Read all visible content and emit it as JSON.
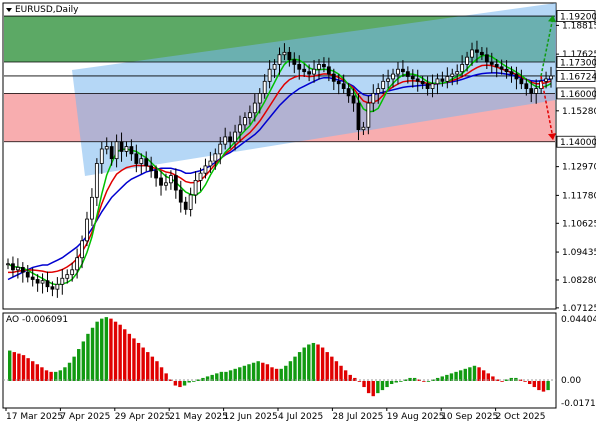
{
  "window": {
    "symbol_label": "EURUSD,Daily"
  },
  "oscillator": {
    "label": "AO -0.006091",
    "scale": [
      "0.044046",
      "0.00",
      "-0.017114"
    ]
  },
  "colors": {
    "resistance_zone": "#3f9a4a",
    "support_zone": "#f4777a",
    "channel": "#78b6ee",
    "ma_fast": "#00c000",
    "ma_mid": "#e00000",
    "ma_slow": "#0000d0",
    "ao_up": "#119a11",
    "ao_down": "#e00000",
    "arrow_up": "#119a11",
    "arrow_down": "#e00000"
  },
  "chart_data": [
    {
      "type": "candlestick",
      "title": "EURUSD,Daily",
      "ylim": [
        1.0712,
        1.197
      ],
      "y_ticks": [
        "1.18815",
        "1.17625",
        "1.15280",
        "1.12970",
        "1.11780",
        "1.10625",
        "1.09435",
        "1.08280",
        "1.07125"
      ],
      "price_labels": [
        {
          "text": "1.19200",
          "value": 1.192,
          "style": "boxed"
        },
        {
          "text": "1.17300",
          "value": 1.173,
          "style": "boxed"
        },
        {
          "text": "1.16724",
          "value": 1.16724,
          "style": "boxed"
        },
        {
          "text": "1.16000",
          "value": 1.16,
          "style": "boxed"
        },
        {
          "text": "1.14000",
          "value": 1.14,
          "style": "boxed"
        }
      ],
      "zones": [
        {
          "name": "resistance",
          "from": 1.173,
          "to": 1.192
        },
        {
          "name": "support",
          "from": 1.14,
          "to": 1.16
        }
      ],
      "x_labels": [
        "17 Mar 2025",
        "7 Apr 2025",
        "29 Apr 2025",
        "21 May 2025",
        "12 Jun 2025",
        "4 Jul 2025",
        "28 Jul 2025",
        "19 Aug 2025",
        "10 Sep 2025",
        "2 Oct 2025"
      ],
      "series": [
        {
          "values": [
            1.0895,
            1.087,
            1.088,
            1.086,
            1.084,
            1.083,
            1.0815,
            1.0825,
            1.08,
            1.079,
            1.081,
            1.0835,
            1.085,
            1.087,
            1.092,
            1.099,
            1.108,
            1.117,
            1.131,
            1.137,
            1.138,
            1.133,
            1.14,
            1.136,
            1.138,
            1.135,
            1.131,
            1.133,
            1.13,
            1.128,
            1.125,
            1.122,
            1.123,
            1.126,
            1.12,
            1.115,
            1.112,
            1.118,
            1.124,
            1.127,
            1.13,
            1.132,
            1.135,
            1.139,
            1.142,
            1.14,
            1.144,
            1.147,
            1.15,
            1.152,
            1.156,
            1.16,
            1.165,
            1.17,
            1.172,
            1.176,
            1.177,
            1.174,
            1.172,
            1.17,
            1.169,
            1.168,
            1.17,
            1.172,
            1.171,
            1.168,
            1.165,
            1.164,
            1.162,
            1.159,
            1.156,
            1.145,
            1.146,
            1.156,
            1.16,
            1.162,
            1.165,
            1.166,
            1.168,
            1.17,
            1.169,
            1.167,
            1.166,
            1.165,
            1.164,
            1.162,
            1.164,
            1.166,
            1.165,
            1.167,
            1.168,
            1.169,
            1.172,
            1.175,
            1.178,
            1.177,
            1.176,
            1.173,
            1.172,
            1.171,
            1.17,
            1.169,
            1.168,
            1.166,
            1.164,
            1.162,
            1.16,
            1.162,
            1.165,
            1.166,
            1.1672
          ]
        },
        {
          "values": [
            1.083,
            1.084,
            1.085,
            1.086,
            1.087,
            1.088,
            1.0885,
            1.089,
            1.089,
            1.09,
            1.091,
            1.092,
            1.0935,
            1.095,
            1.0965,
            1.0985,
            1.101,
            1.104,
            1.1075,
            1.111,
            1.114,
            1.117,
            1.119,
            1.121,
            1.123,
            1.1245,
            1.1255,
            1.1265,
            1.1275,
            1.128,
            1.1285,
            1.129,
            1.129,
            1.129,
            1.1285,
            1.128,
            1.127,
            1.127,
            1.1275,
            1.128,
            1.129,
            1.13,
            1.1315,
            1.133,
            1.1345,
            1.1355,
            1.137,
            1.1385,
            1.14,
            1.1415,
            1.143,
            1.145,
            1.1475,
            1.15,
            1.1525,
            1.155,
            1.157,
            1.159,
            1.1605,
            1.162,
            1.163,
            1.164,
            1.165,
            1.166,
            1.1665,
            1.1665,
            1.166,
            1.1655,
            1.165,
            1.164,
            1.163,
            1.161,
            1.1595,
            1.159,
            1.1595,
            1.16,
            1.1605,
            1.161,
            1.1615,
            1.162,
            1.1625,
            1.1628,
            1.163,
            1.1632,
            1.1634,
            1.1635,
            1.1637,
            1.164,
            1.1642,
            1.1645,
            1.1648,
            1.1652,
            1.1658,
            1.1665,
            1.1672,
            1.1678,
            1.1682,
            1.1684,
            1.1685,
            1.1685,
            1.1683,
            1.168,
            1.1676,
            1.167,
            1.1664,
            1.1658,
            1.1652,
            1.165,
            1.1652,
            1.1656,
            1.166
          ]
        }
      ]
    },
    {
      "type": "bar",
      "title": "AO -0.006091",
      "ylim": [
        -0.017114,
        0.044046
      ],
      "values": [
        0.02,
        0.019,
        0.018,
        0.017,
        0.015,
        0.013,
        0.011,
        0.009,
        0.007,
        0.006,
        0.006,
        0.007,
        0.009,
        0.012,
        0.016,
        0.021,
        0.026,
        0.031,
        0.035,
        0.039,
        0.041,
        0.042,
        0.041,
        0.039,
        0.037,
        0.034,
        0.031,
        0.028,
        0.025,
        0.022,
        0.019,
        0.016,
        0.013,
        0.009,
        0.005,
        0.001,
        -0.003,
        -0.004,
        -0.003,
        -0.001,
        0.0,
        0.001,
        0.002,
        0.003,
        0.004,
        0.005,
        0.006,
        0.006,
        0.007,
        0.008,
        0.009,
        0.01,
        0.011,
        0.012,
        0.013,
        0.012,
        0.011,
        0.009,
        0.008,
        0.008,
        0.01,
        0.013,
        0.016,
        0.019,
        0.022,
        0.024,
        0.025,
        0.024,
        0.022,
        0.019,
        0.016,
        0.013,
        0.01,
        0.007,
        0.004,
        0.002,
        0.0,
        -0.004,
        -0.008,
        -0.01,
        -0.008,
        -0.006,
        -0.004,
        -0.002,
        -0.001,
        0.0,
        0.001,
        0.002,
        0.002,
        0.001,
        0.0,
        0.0,
        0.001,
        0.002,
        0.003,
        0.004,
        0.005,
        0.006,
        0.007,
        0.008,
        0.009,
        0.01,
        0.009,
        0.007,
        0.005,
        0.003,
        0.001,
        0.0,
        0.001,
        0.002,
        0.002,
        0.001,
        0.0,
        -0.002,
        -0.004,
        -0.006,
        -0.007,
        -0.006
      ]
    }
  ]
}
